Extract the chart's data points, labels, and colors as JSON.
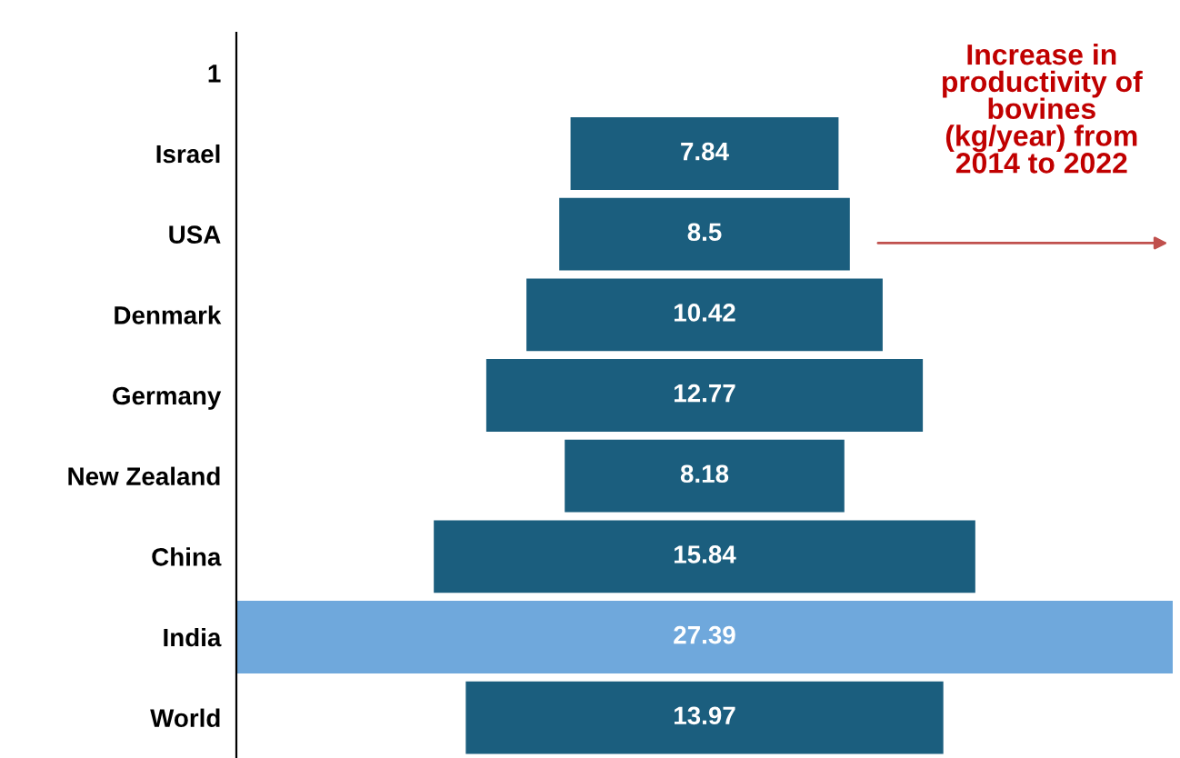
{
  "chart_data": {
    "type": "other",
    "categories": [
      "1",
      "Israel",
      "USA",
      "Denmark",
      "Germany",
      "New Zealand",
      "China",
      "India",
      "World"
    ],
    "values": [
      null,
      7.84,
      8.5,
      10.42,
      12.77,
      8.18,
      15.84,
      27.39,
      13.97
    ],
    "colors": [
      "#1b5e7e",
      "#1b5e7e",
      "#1b5e7e",
      "#1b5e7e",
      "#1b5e7e",
      "#1b5e7e",
      "#1b5e7e",
      "#6fa8dc",
      "#1b5e7e"
    ],
    "data_labels": true,
    "annotations": [
      "Increase in\nproductivity of\nbovines\n(kg/year) from\n2014 to 2022"
    ]
  }
}
